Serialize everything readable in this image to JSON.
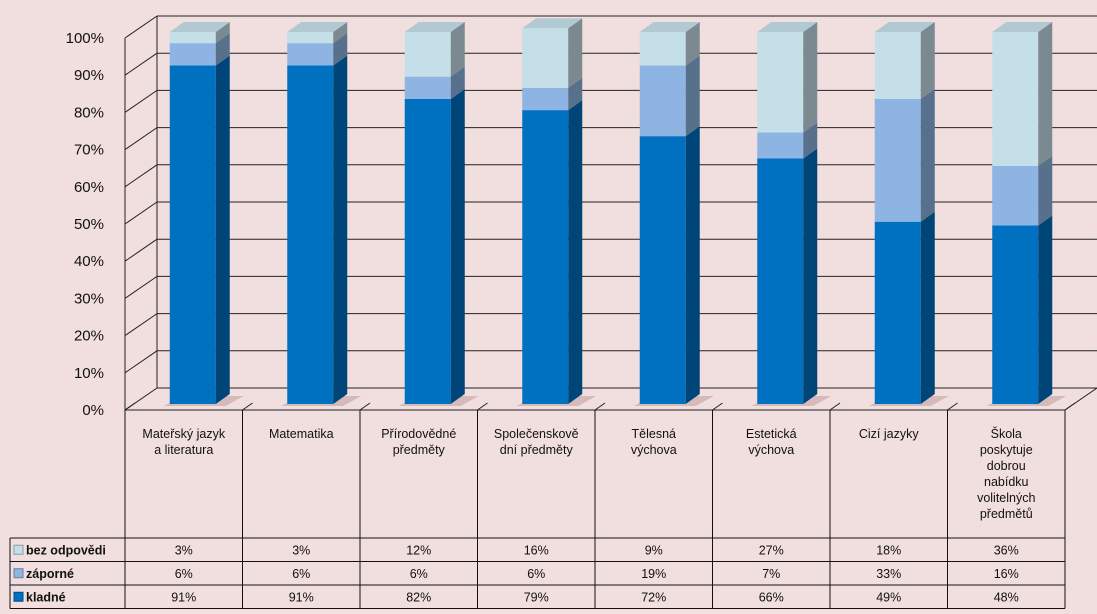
{
  "chart_data": {
    "type": "bar",
    "stacked": true,
    "three_d": true,
    "percent_stacked": true,
    "categories": [
      [
        "Mateřský jazyk",
        "a literatura"
      ],
      [
        "Matematika"
      ],
      [
        "Přírodovědné",
        "předměty"
      ],
      [
        "Společenskově",
        "dní předměty"
      ],
      [
        "Tělesná",
        "výchova"
      ],
      [
        "Estetická",
        "výchova"
      ],
      [
        "Cizí jazyky"
      ],
      [
        "Škola",
        "poskytuje",
        "dobrou",
        "nabídku",
        "volitelných",
        "předmětů"
      ]
    ],
    "series": [
      {
        "name": "kladné",
        "color": "#0070c0",
        "values": [
          91,
          91,
          82,
          79,
          72,
          66,
          49,
          48
        ],
        "labels": [
          "91%",
          "91%",
          "82%",
          "79%",
          "72%",
          "66%",
          "49%",
          "48%"
        ]
      },
      {
        "name": "záporné",
        "color": "#8db4e2",
        "values": [
          6,
          6,
          6,
          6,
          19,
          7,
          33,
          16
        ],
        "labels": [
          "6%",
          "6%",
          "6%",
          "6%",
          "19%",
          "7%",
          "33%",
          "16%"
        ]
      },
      {
        "name": "bez odpovědi",
        "color": "#c5dfe9",
        "values": [
          3,
          3,
          12,
          16,
          9,
          27,
          18,
          36
        ],
        "labels": [
          "3%",
          "3%",
          "12%",
          "16%",
          "9%",
          "27%",
          "18%",
          "36%"
        ]
      }
    ],
    "table_row_order": [
      "bez odpovědi",
      "záporné",
      "kladné"
    ],
    "yticks": [
      "0%",
      "10%",
      "20%",
      "30%",
      "40%",
      "50%",
      "60%",
      "70%",
      "80%",
      "90%",
      "100%"
    ],
    "ylim": [
      0,
      100
    ],
    "grid": true,
    "legend": "data-table"
  }
}
